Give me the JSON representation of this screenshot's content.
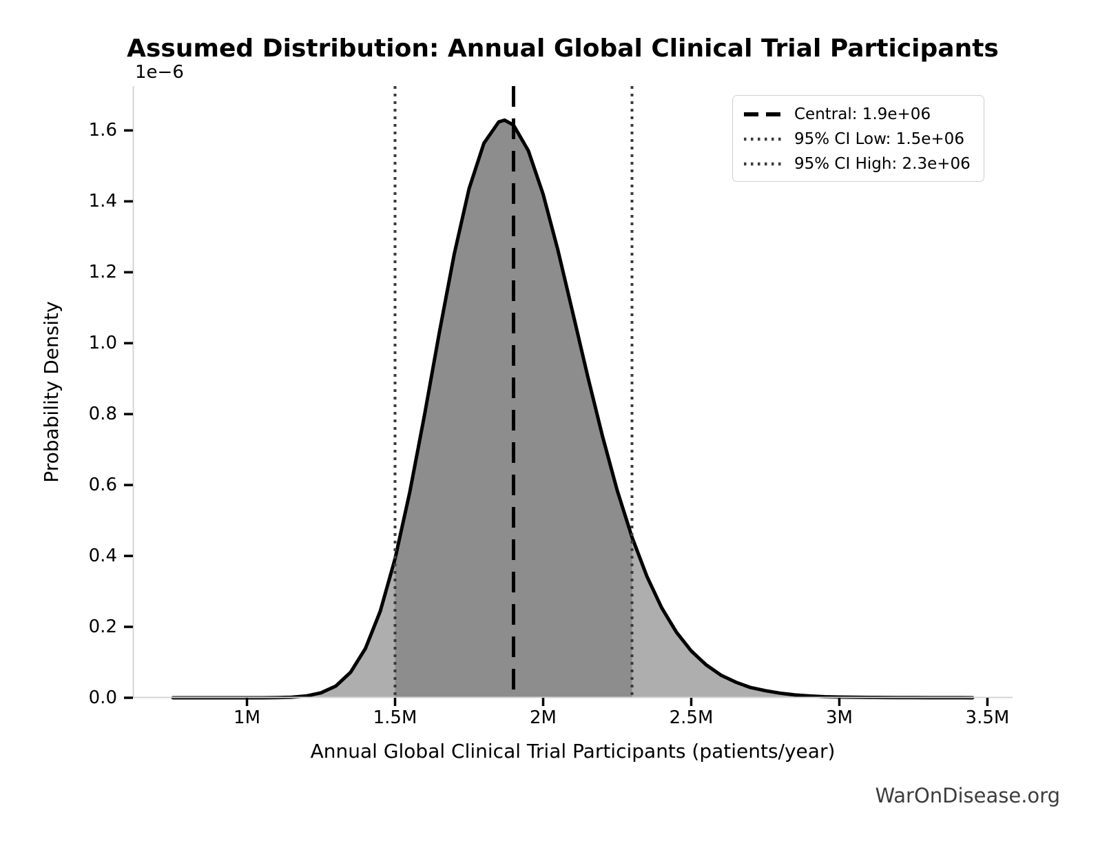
{
  "header": {
    "title": "Assumed Distribution: Annual Global Clinical Trial Participants"
  },
  "watermark": "WarOnDisease.org",
  "axes": {
    "y_offset_label": "1e−6",
    "ylabel": "Probability Density",
    "xlabel": "Annual Global Clinical Trial Participants (patients/year)"
  },
  "legend": {
    "entries": [
      {
        "label": "Central: 1.9e+06",
        "style": "dashed",
        "color": "#000000"
      },
      {
        "label": "95% CI Low: 1.5e+06",
        "style": "dotted",
        "color": "#3a3a3a"
      },
      {
        "label": "95% CI High: 2.3e+06",
        "style": "dotted",
        "color": "#3a3a3a"
      }
    ]
  },
  "chart_data": {
    "type": "area",
    "title": "Assumed Distribution: Annual Global Clinical Trial Participants",
    "xlabel": "Annual Global Clinical Trial Participants (patients/year)",
    "ylabel": "Probability Density",
    "y_scale_factor": "1e-6",
    "grid": false,
    "legend_position": "upper right",
    "xlim_millions": [
      0.615,
      3.585
    ],
    "ylim_1e6": [
      0,
      1.725
    ],
    "central": 1900000,
    "ci_low": 1500000,
    "ci_high": 2300000,
    "distribution": {
      "family": "lognormal",
      "median": 1900000,
      "log_sigma": 0.13
    },
    "x_ticks": [
      {
        "v": 1.0,
        "label": "1M"
      },
      {
        "v": 1.5,
        "label": "1.5M"
      },
      {
        "v": 2.0,
        "label": "2M"
      },
      {
        "v": 2.5,
        "label": "2.5M"
      },
      {
        "v": 3.0,
        "label": "3M"
      },
      {
        "v": 3.5,
        "label": "3.5M"
      }
    ],
    "y_ticks": [
      {
        "v": 0.0,
        "label": "0.0"
      },
      {
        "v": 0.2,
        "label": "0.2"
      },
      {
        "v": 0.4,
        "label": "0.4"
      },
      {
        "v": 0.6,
        "label": "0.6"
      },
      {
        "v": 0.8,
        "label": "0.8"
      },
      {
        "v": 1.0,
        "label": "1.0"
      },
      {
        "v": 1.2,
        "label": "1.2"
      },
      {
        "v": 1.4,
        "label": "1.4"
      },
      {
        "v": 1.6,
        "label": "1.6"
      }
    ],
    "curve": {
      "x_millions": [
        0.75,
        0.8,
        0.85,
        0.9,
        0.95,
        1.0,
        1.05,
        1.1,
        1.15,
        1.2,
        1.25,
        1.3,
        1.35,
        1.4,
        1.45,
        1.5,
        1.55,
        1.6,
        1.65,
        1.7,
        1.75,
        1.8,
        1.85,
        1.87,
        1.9,
        1.95,
        2.0,
        2.05,
        2.1,
        2.15,
        2.2,
        2.25,
        2.3,
        2.35,
        2.4,
        2.45,
        2.5,
        2.55,
        2.6,
        2.65,
        2.7,
        2.75,
        2.8,
        2.85,
        2.9,
        2.95,
        3.0,
        3.05,
        3.1,
        3.15,
        3.2,
        3.25,
        3.3,
        3.35,
        3.4,
        3.45
      ],
      "density_1e6": [
        0,
        0,
        0,
        0,
        0,
        0,
        0,
        0.0004,
        0.0015,
        0.005,
        0.014,
        0.033,
        0.072,
        0.139,
        0.244,
        0.392,
        0.581,
        0.8,
        1.032,
        1.252,
        1.436,
        1.564,
        1.624,
        1.629,
        1.615,
        1.543,
        1.42,
        1.262,
        1.086,
        0.908,
        0.739,
        0.585,
        0.453,
        0.343,
        0.254,
        0.185,
        0.132,
        0.093,
        0.064,
        0.044,
        0.029,
        0.02,
        0.013,
        0.008,
        0.005,
        0.003,
        0.002,
        0.0015,
        0.001,
        0.0007,
        0.0005,
        0.0003,
        0.0002,
        0.0001,
        0.0001,
        0
      ]
    },
    "colors": {
      "curve": "#000000",
      "fill_outer": "#aeaeae",
      "fill_inner": "#8d8d8d",
      "central_line": "#000000",
      "ci_line": "#3a3a3a",
      "spine": "#d4d4d4",
      "tick": "#000000"
    }
  }
}
